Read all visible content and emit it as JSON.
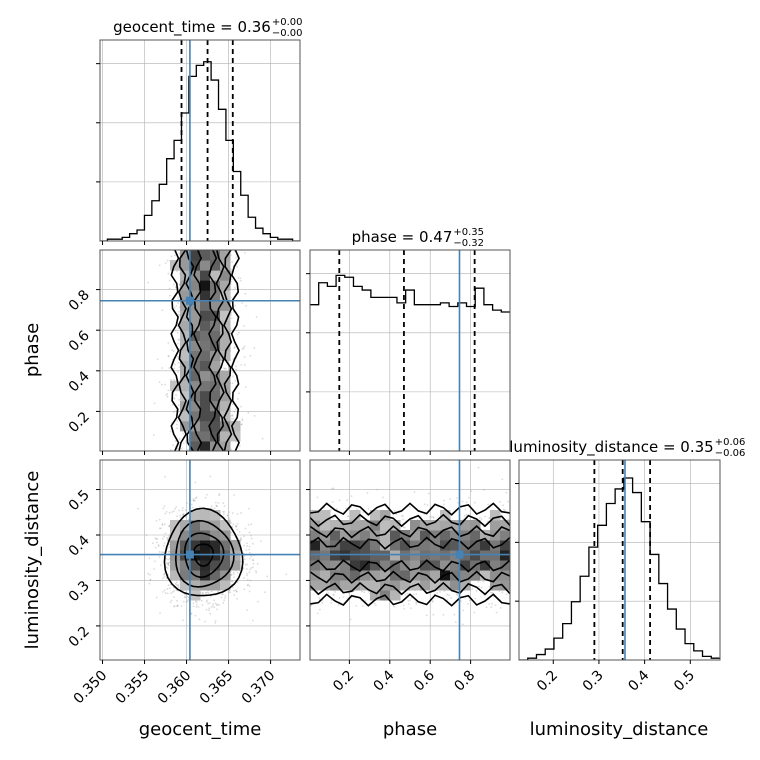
{
  "chart_data": {
    "type": "corner",
    "parameters": [
      "geocent_time",
      "phase",
      "luminosity_distance"
    ],
    "titles": [
      {
        "label": "geocent_time = 0.36",
        "upper": "+0.00",
        "lower": "−0.00"
      },
      {
        "label": "phase = 0.47",
        "upper": "+0.35",
        "lower": "−0.32"
      },
      {
        "label": "luminosity_distance = 0.35",
        "upper": "+0.06",
        "lower": "−0.06"
      }
    ],
    "axis_labels": [
      "geocent_time",
      "phase",
      "luminosity_distance"
    ],
    "ranges": {
      "geocent_time": [
        0.3497,
        0.3735
      ],
      "phase": [
        0.005,
        0.995
      ],
      "luminosity_distance": [
        0.125,
        0.565
      ]
    },
    "ticks": {
      "geocent_time": [
        0.35,
        0.355,
        0.36,
        0.365,
        0.37
      ],
      "geocent_time_labels": [
        "0.350",
        "0.355",
        "0.360",
        "0.365",
        "0.370"
      ],
      "phase": [
        0.2,
        0.4,
        0.6,
        0.8
      ],
      "phase_labels": [
        "0.2",
        "0.4",
        "0.6",
        "0.8"
      ],
      "luminosity_distance": [
        0.2,
        0.3,
        0.4,
        0.5
      ],
      "luminosity_distance_labels": [
        "0.2",
        "0.3",
        "0.4",
        "0.5"
      ]
    },
    "truths": {
      "geocent_time": 0.3604,
      "phase": 0.745,
      "luminosity_distance": 0.357
    },
    "quantiles": {
      "geocent_time": [
        0.3594,
        0.3625,
        0.3655
      ],
      "phase": [
        0.15,
        0.47,
        0.82
      ],
      "luminosity_distance": [
        0.29,
        0.352,
        0.412
      ]
    },
    "hist_1d": {
      "geocent_time": {
        "range": [
          0.3497,
          0.3735
        ],
        "counts": [
          0,
          0.01,
          0.01,
          0.02,
          0.04,
          0.06,
          0.14,
          0.22,
          0.31,
          0.45,
          0.55,
          0.7,
          0.9,
          0.96,
          0.98,
          0.88,
          0.72,
          0.55,
          0.38,
          0.25,
          0.13,
          0.07,
          0.04,
          0.02,
          0.01,
          0.01,
          0
        ]
      },
      "phase": {
        "range": [
          0.005,
          0.995
        ],
        "counts": [
          0.8,
          0.92,
          0.9,
          0.96,
          0.95,
          0.9,
          0.88,
          0.84,
          0.84,
          0.84,
          0.81,
          0.88,
          0.8,
          0.8,
          0.8,
          0.81,
          0.79,
          0.81,
          0.79,
          0.89,
          0.8,
          0.77,
          0.76
        ]
      },
      "luminosity_distance": {
        "range": [
          0.125,
          0.565
        ],
        "counts": [
          0,
          0.01,
          0.03,
          0.06,
          0.12,
          0.2,
          0.32,
          0.46,
          0.62,
          0.74,
          0.86,
          0.94,
          1.0,
          0.92,
          0.76,
          0.58,
          0.42,
          0.28,
          0.17,
          0.09,
          0.05,
          0.02,
          0.01
        ]
      }
    },
    "hist_2d": {
      "phase_vs_geocent_time": {
        "x": "geocent_time",
        "y": "phase",
        "x_center": 0.3622,
        "x_sigma": 0.0018,
        "y_uniform": [
          0.0,
          1.0
        ]
      },
      "luminosity_distance_vs_geocent_time": {
        "x": "geocent_time",
        "y": "luminosity_distance",
        "x_center": 0.362,
        "x_sigma": 0.0023,
        "y_center": 0.357,
        "y_sigma": 0.048
      },
      "luminosity_distance_vs_phase": {
        "x": "phase",
        "y": "luminosity_distance",
        "x_uniform": [
          0.0,
          1.0
        ],
        "y_center": 0.357,
        "y_sigma": 0.05
      }
    },
    "colors": {
      "truth": "#4682b4",
      "quantile": "#000000",
      "hist": "#000000",
      "grid": "#b0b0b0"
    },
    "grid": true
  }
}
